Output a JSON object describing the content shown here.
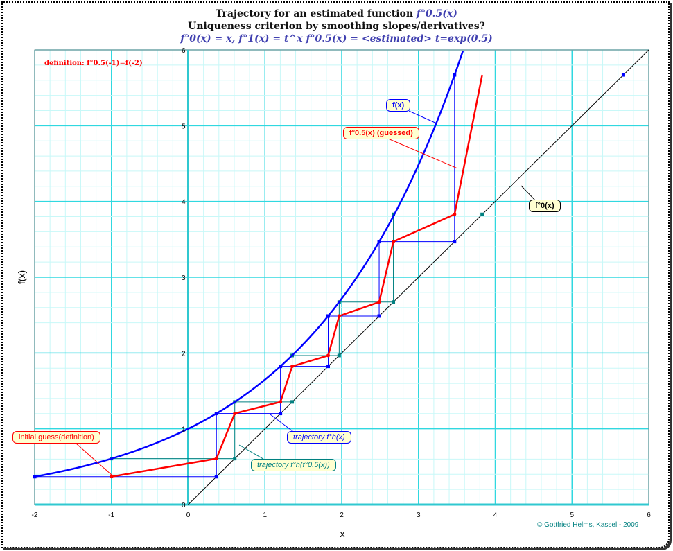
{
  "title": {
    "line1_prefix": "Trajectory for an estimated function ",
    "line1_func": "f°0.5(x)",
    "line2": "Uniqueness criterion by smoothing slopes/derivatives?",
    "line3": "f°0(x) = x, f°1(x) = t^x  f°0.5(x) = <estimated>  t=exp(0.5)"
  },
  "definition_note": "definition: f°0.5(-1)=f(-2)",
  "copyright": "© Gottfried Helms, Kassel - 2009",
  "callouts": {
    "fx": "f(x)",
    "half": "f°0.5(x) (guessed)",
    "identity": "f°0(x)",
    "initial": "initial guess(definition)",
    "traj_h": "trajectory f°h(x)",
    "traj_h_half": "trajectory f°h(f°0.5(x))"
  },
  "chart_data": {
    "type": "line",
    "xlabel": "x",
    "ylabel": "f(x)",
    "xlim": [
      -2,
      6
    ],
    "ylim": [
      0,
      6
    ],
    "xticks": [
      "-2",
      "-1",
      "0",
      "1",
      "2",
      "3",
      "4",
      "5",
      "6"
    ],
    "yticks": [
      "0",
      "1",
      "2",
      "3",
      "4",
      "5",
      "6"
    ],
    "t": 1.6487,
    "grid": true,
    "series": [
      {
        "name": "f(x) = t^x",
        "color": "#0000ff",
        "function": "exp(0.5x)"
      },
      {
        "name": "f°0(x) = x",
        "color": "#000000",
        "function": "x"
      },
      {
        "name": "f°0.5(x) (guessed)",
        "color": "#ff0000",
        "points": [
          [
            -1,
            0.368
          ],
          [
            0.368,
            0.607
          ],
          [
            0.607,
            1.202
          ],
          [
            1.202,
            1.355
          ],
          [
            1.355,
            1.824
          ],
          [
            1.824,
            1.967
          ],
          [
            1.967,
            2.488
          ],
          [
            2.488,
            2.673
          ],
          [
            2.673,
            3.47
          ],
          [
            3.47,
            3.83
          ],
          [
            3.83,
            5.67
          ]
        ]
      },
      {
        "name": "trajectory f°h(x)",
        "color": "#0000ff",
        "orbit": [
          -2,
          0.368,
          1.202,
          1.824,
          2.488,
          3.47,
          5.67
        ]
      },
      {
        "name": "trajectory f°h(f°0.5(x))",
        "color": "#008080",
        "orbit": [
          -1,
          0.607,
          1.355,
          1.967,
          2.673,
          3.83
        ]
      }
    ]
  }
}
